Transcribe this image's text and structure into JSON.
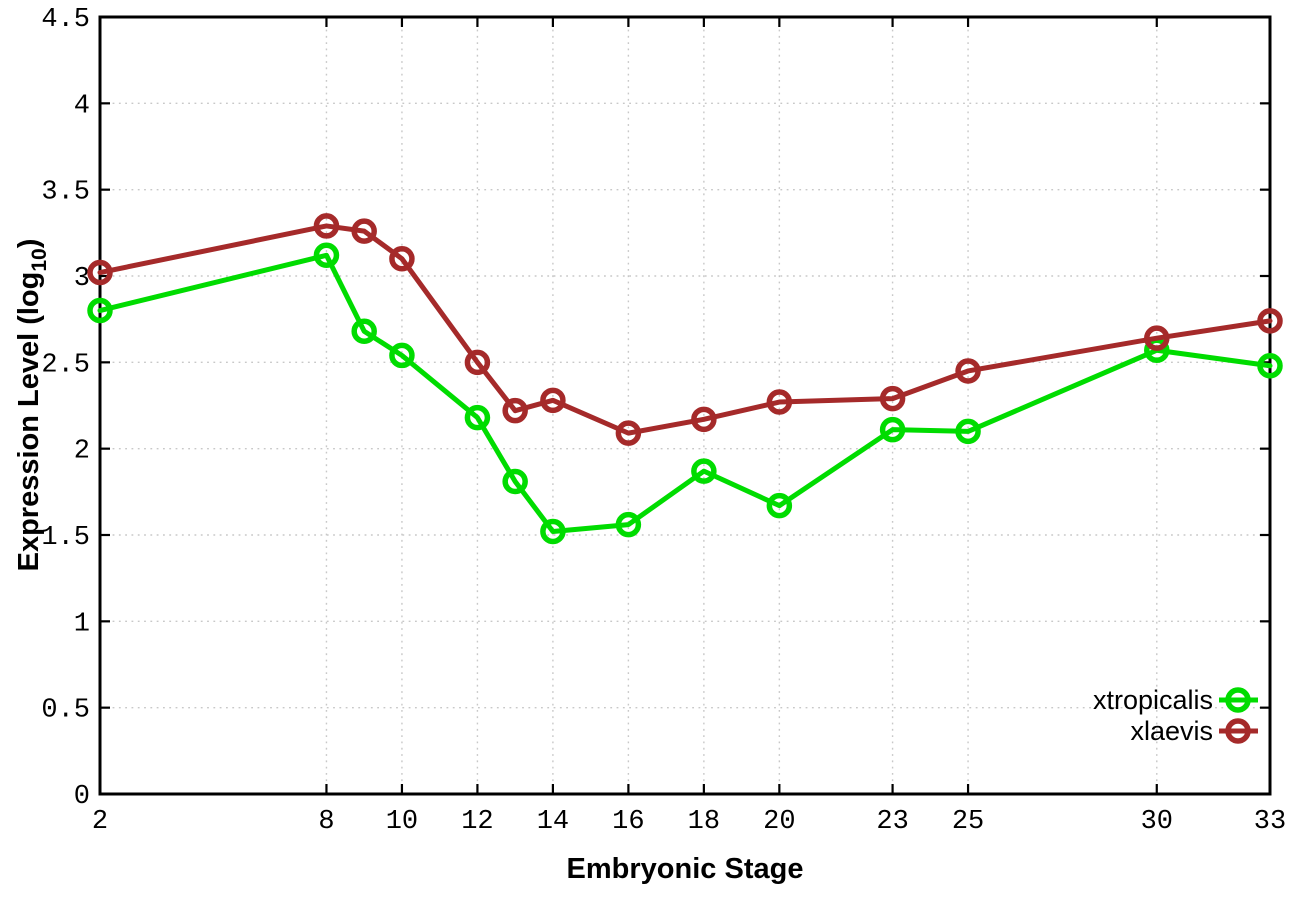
{
  "chart_data": {
    "type": "line",
    "title": "",
    "xlabel": "Embryonic Stage",
    "ylabel": "Expression Level (log10)",
    "ylabel_parts": {
      "main": "Expression Level (log",
      "sub": "10",
      "end": ")"
    },
    "xlim": [
      2,
      33
    ],
    "ylim": [
      0,
      4.5
    ],
    "grid": true,
    "legend_position": "bottom-right inside",
    "x_ticks": [
      2,
      8,
      10,
      12,
      14,
      16,
      18,
      20,
      23,
      25,
      30,
      33
    ],
    "x_tick_labels": [
      "2",
      "8",
      "10",
      "12",
      "14",
      "16",
      "18",
      "20",
      "23",
      "25",
      "30",
      "33"
    ],
    "y_ticks": [
      0,
      0.5,
      1,
      1.5,
      2,
      2.5,
      3,
      3.5,
      4,
      4.5
    ],
    "y_tick_labels": [
      "0",
      "0.5",
      "1",
      "1.5",
      "2",
      "2.5",
      "3",
      "3.5",
      "4",
      "4.5"
    ],
    "x": [
      2,
      8,
      9,
      10,
      12,
      13,
      14,
      16,
      18,
      20,
      23,
      25,
      30,
      33
    ],
    "series": [
      {
        "name": "xtropicalis",
        "color": "#00dc00",
        "marker": "open-circle",
        "values": [
          2.8,
          3.12,
          2.68,
          2.54,
          2.18,
          1.81,
          1.52,
          1.56,
          1.87,
          1.67,
          2.11,
          2.1,
          2.57,
          2.48
        ]
      },
      {
        "name": "xlaevis",
        "color": "#a52a2a",
        "marker": "open-circle",
        "values": [
          3.02,
          3.29,
          3.26,
          3.1,
          2.5,
          2.22,
          2.28,
          2.09,
          2.17,
          2.27,
          2.29,
          2.45,
          2.64,
          2.74
        ]
      }
    ]
  },
  "colors": {
    "background": "#ffffff",
    "plot_border": "#000000",
    "grid": "#c8c8c8",
    "tick": "#000000",
    "text": "#000000"
  }
}
